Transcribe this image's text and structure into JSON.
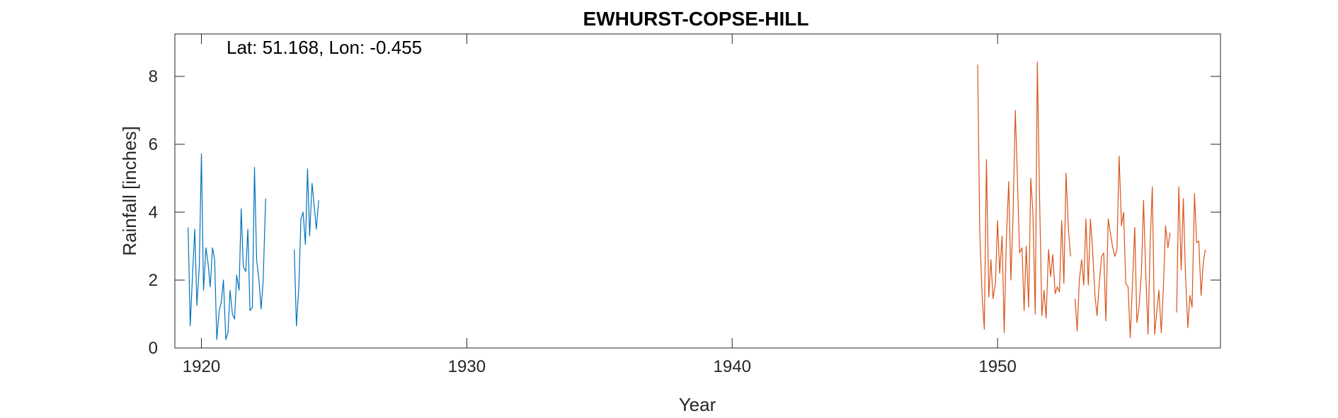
{
  "chart_data": {
    "type": "line",
    "title": "EWHURST-COPSE-HILL",
    "xlabel": "Year",
    "ylabel": "Rainfall [inches]",
    "annotation": "Lat: 51.168, Lon: -0.455",
    "xlim": [
      1919,
      1958.4
    ],
    "ylim": [
      0,
      9.25
    ],
    "xticks": [
      1920,
      1930,
      1940,
      1950
    ],
    "yticks": [
      0,
      2,
      4,
      6,
      8
    ],
    "grid": false,
    "legend": "none",
    "series": [
      {
        "color": "#0072BD",
        "segments": [
          [
            [
              1919.5,
              3.55
            ],
            [
              1919.58,
              0.65
            ],
            [
              1919.67,
              2.2
            ],
            [
              1919.75,
              3.5
            ],
            [
              1919.83,
              1.25
            ],
            [
              1919.92,
              2.4
            ],
            [
              1920.0,
              5.72
            ],
            [
              1920.08,
              1.7
            ],
            [
              1920.17,
              2.95
            ],
            [
              1920.25,
              2.5
            ],
            [
              1920.33,
              1.8
            ],
            [
              1920.42,
              2.95
            ],
            [
              1920.5,
              2.6
            ],
            [
              1920.58,
              0.25
            ],
            [
              1920.67,
              1.1
            ],
            [
              1920.75,
              1.35
            ],
            [
              1920.83,
              2.0
            ],
            [
              1920.92,
              0.25
            ],
            [
              1921.0,
              0.45
            ],
            [
              1921.08,
              1.7
            ],
            [
              1921.17,
              1.0
            ],
            [
              1921.25,
              0.85
            ],
            [
              1921.33,
              2.15
            ],
            [
              1921.42,
              1.7
            ],
            [
              1921.5,
              4.1
            ],
            [
              1921.58,
              2.4
            ],
            [
              1921.67,
              2.25
            ],
            [
              1921.75,
              3.5
            ],
            [
              1921.83,
              1.1
            ],
            [
              1921.92,
              1.2
            ],
            [
              1922.0,
              5.32
            ],
            [
              1922.08,
              2.6
            ],
            [
              1922.17,
              2.0
            ],
            [
              1922.25,
              1.15
            ],
            [
              1922.33,
              2.0
            ],
            [
              1922.42,
              4.4
            ]
          ],
          [
            [
              1923.5,
              2.9
            ],
            [
              1923.58,
              0.65
            ],
            [
              1923.67,
              1.8
            ],
            [
              1923.75,
              3.8
            ],
            [
              1923.83,
              4.0
            ],
            [
              1923.92,
              3.05
            ],
            [
              1924.0,
              5.28
            ],
            [
              1924.08,
              3.3
            ],
            [
              1924.17,
              4.85
            ],
            [
              1924.25,
              4.2
            ],
            [
              1924.33,
              3.5
            ],
            [
              1924.42,
              4.35
            ]
          ]
        ]
      },
      {
        "color": "#D95319",
        "segments": [
          [
            [
              1949.25,
              8.35
            ],
            [
              1949.33,
              3.4
            ],
            [
              1949.42,
              1.5
            ],
            [
              1949.5,
              0.55
            ],
            [
              1949.58,
              5.55
            ],
            [
              1949.67,
              1.5
            ],
            [
              1949.75,
              2.6
            ],
            [
              1949.83,
              1.45
            ],
            [
              1949.92,
              1.9
            ],
            [
              1950.0,
              3.75
            ],
            [
              1950.08,
              2.2
            ],
            [
              1950.17,
              3.3
            ],
            [
              1950.25,
              0.45
            ],
            [
              1950.33,
              3.2
            ],
            [
              1950.42,
              4.9
            ],
            [
              1950.5,
              2.0
            ],
            [
              1950.58,
              3.75
            ],
            [
              1950.67,
              7.0
            ],
            [
              1950.75,
              4.95
            ],
            [
              1950.83,
              2.8
            ],
            [
              1950.92,
              2.95
            ],
            [
              1951.0,
              1.1
            ],
            [
              1951.08,
              3.0
            ],
            [
              1951.17,
              1.2
            ],
            [
              1951.25,
              5.0
            ],
            [
              1951.33,
              4.0
            ],
            [
              1951.42,
              1.0
            ],
            [
              1951.5,
              8.42
            ],
            [
              1951.58,
              4.6
            ],
            [
              1951.67,
              0.95
            ],
            [
              1951.75,
              1.7
            ],
            [
              1951.83,
              0.88
            ],
            [
              1951.92,
              2.9
            ],
            [
              1952.0,
              2.1
            ],
            [
              1952.08,
              2.75
            ],
            [
              1952.17,
              1.6
            ],
            [
              1952.25,
              1.8
            ],
            [
              1952.33,
              1.65
            ],
            [
              1952.42,
              3.75
            ],
            [
              1952.5,
              1.9
            ],
            [
              1952.58,
              5.15
            ],
            [
              1952.67,
              3.5
            ],
            [
              1952.75,
              2.7
            ]
          ],
          [
            [
              1952.92,
              1.45
            ],
            [
              1953.0,
              0.5
            ],
            [
              1953.08,
              2.0
            ],
            [
              1953.17,
              2.6
            ],
            [
              1953.25,
              1.85
            ],
            [
              1953.33,
              3.8
            ],
            [
              1953.42,
              1.85
            ],
            [
              1953.5,
              3.8
            ],
            [
              1953.58,
              2.9
            ],
            [
              1953.67,
              1.55
            ],
            [
              1953.75,
              0.95
            ],
            [
              1953.83,
              1.9
            ],
            [
              1953.92,
              2.7
            ],
            [
              1954.0,
              2.8
            ],
            [
              1954.08,
              0.8
            ],
            [
              1954.17,
              3.8
            ],
            [
              1954.25,
              3.4
            ],
            [
              1954.33,
              3.0
            ],
            [
              1954.42,
              2.7
            ],
            [
              1954.5,
              2.9
            ],
            [
              1954.58,
              5.65
            ],
            [
              1954.67,
              3.6
            ],
            [
              1954.75,
              4.0
            ],
            [
              1954.83,
              1.9
            ],
            [
              1954.92,
              1.8
            ],
            [
              1955.0,
              0.3
            ],
            [
              1955.08,
              1.8
            ],
            [
              1955.17,
              3.55
            ],
            [
              1955.25,
              0.75
            ],
            [
              1955.33,
              1.2
            ],
            [
              1955.42,
              2.2
            ],
            [
              1955.5,
              4.35
            ],
            [
              1955.58,
              2.3
            ],
            [
              1955.67,
              0.4
            ],
            [
              1955.75,
              3.1
            ],
            [
              1955.83,
              4.75
            ],
            [
              1955.92,
              0.4
            ],
            [
              1956.0,
              1.05
            ],
            [
              1956.08,
              1.7
            ],
            [
              1956.17,
              0.45
            ],
            [
              1956.25,
              1.8
            ],
            [
              1956.33,
              3.6
            ],
            [
              1956.42,
              2.95
            ],
            [
              1956.5,
              3.4
            ]
          ],
          [
            [
              1956.75,
              1.05
            ],
            [
              1956.83,
              4.75
            ],
            [
              1956.92,
              2.3
            ],
            [
              1957.0,
              4.4
            ],
            [
              1957.08,
              2.2
            ],
            [
              1957.17,
              0.6
            ],
            [
              1957.25,
              1.55
            ],
            [
              1957.33,
              1.2
            ],
            [
              1957.42,
              4.55
            ],
            [
              1957.5,
              3.1
            ],
            [
              1957.58,
              3.15
            ],
            [
              1957.67,
              1.55
            ],
            [
              1957.75,
              2.5
            ],
            [
              1957.83,
              2.9
            ]
          ]
        ]
      }
    ]
  }
}
